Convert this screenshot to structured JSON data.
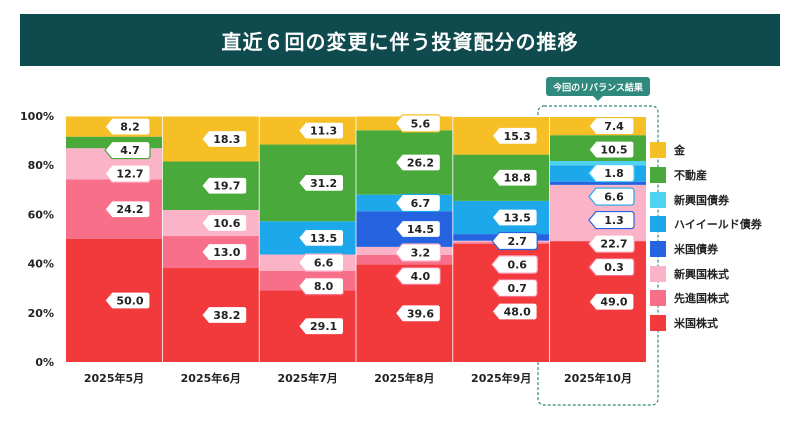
{
  "title": "直近６回の変更に伴う投資配分の推移",
  "callout": "今回のリバランス結果",
  "legend": [
    "金",
    "不動産",
    "新興国債券",
    "ハイイールド債券",
    "米国債券",
    "新興国株式",
    "先進国株式",
    "米国株式"
  ],
  "chart_data": {
    "type": "bar",
    "stacked": true,
    "title": "直近６回の変更に伴う投資配分の推移",
    "categories": [
      "2025年5月",
      "2025年6月",
      "2025年7月",
      "2025年8月",
      "2025年9月",
      "2025年10月"
    ],
    "yticks": [
      "0%",
      "20%",
      "40%",
      "60%",
      "80%",
      "100%"
    ],
    "ylim": [
      0,
      100
    ],
    "highlight_index": 5,
    "series": [
      {
        "name": "米国株式",
        "color": "#f23a3d",
        "values": [
          50.0,
          38.2,
          29.1,
          39.6,
          48.0,
          49.0
        ]
      },
      {
        "name": "先進国株式",
        "color": "#f76f88",
        "values": [
          24.2,
          13.0,
          8.0,
          4.0,
          0.7,
          0.3
        ]
      },
      {
        "name": "新興国株式",
        "color": "#fbb3c7",
        "values": [
          12.7,
          10.6,
          6.6,
          3.2,
          0.6,
          22.7
        ]
      },
      {
        "name": "米国債券",
        "color": "#2563e0",
        "values": [
          0,
          0,
          0,
          14.5,
          2.7,
          1.3
        ]
      },
      {
        "name": "ハイイールド債券",
        "color": "#1ea8ec",
        "values": [
          0,
          0,
          13.5,
          6.7,
          13.5,
          6.6
        ]
      },
      {
        "name": "新興国債券",
        "color": "#4fd3f3",
        "values": [
          0,
          0,
          0,
          0,
          0,
          1.8
        ]
      },
      {
        "name": "不動産",
        "color": "#49a93b",
        "values": [
          4.7,
          19.7,
          31.2,
          26.2,
          18.8,
          10.5
        ]
      },
      {
        "name": "金",
        "color": "#f6bf26",
        "values": [
          8.2,
          18.3,
          11.3,
          5.6,
          15.3,
          7.4
        ]
      }
    ],
    "labels": [
      [
        {
          "s": "金",
          "text": "8.2"
        },
        {
          "s": "不動産",
          "text": "4.7"
        },
        {
          "s": "新興国株式",
          "text": "12.7"
        },
        {
          "s": "先進国株式",
          "text": "24.2"
        },
        {
          "s": "米国株式",
          "text": "50.0"
        }
      ],
      [
        {
          "s": "金",
          "text": "18.3"
        },
        {
          "s": "不動産",
          "text": "19.7"
        },
        {
          "s": "新興国株式",
          "text": "10.6"
        },
        {
          "s": "先進国株式",
          "text": "13.0"
        },
        {
          "s": "米国株式",
          "text": "38.2"
        }
      ],
      [
        {
          "s": "金",
          "text": "11.3"
        },
        {
          "s": "不動産",
          "text": "31.2"
        },
        {
          "s": "ハイイールド債券",
          "text": "13.5"
        },
        {
          "s": "新興国株式",
          "text": "6.6"
        },
        {
          "s": "先進国株式",
          "text": "8.0"
        },
        {
          "s": "米国株式",
          "text": "29.1"
        }
      ],
      [
        {
          "s": "金",
          "text": "5.6"
        },
        {
          "s": "不動産",
          "text": "26.2"
        },
        {
          "s": "ハイイールド債券",
          "text": "6.7"
        },
        {
          "s": "米国債券",
          "text": "14.5"
        },
        {
          "s": "新興国株式",
          "text": "3.2"
        },
        {
          "s": "先進国株式",
          "text": "4.0"
        },
        {
          "s": "米国株式",
          "text": "39.6"
        }
      ],
      [
        {
          "s": "金",
          "text": "15.3"
        },
        {
          "s": "不動産",
          "text": "18.8"
        },
        {
          "s": "ハイイールド債券",
          "text": "13.5"
        },
        {
          "s": "米国債券",
          "text": "2.7"
        },
        {
          "s": "新興国株式",
          "text": "0.6"
        },
        {
          "s": "先進国株式",
          "text": "0.7"
        },
        {
          "s": "米国株式",
          "text": "48.0"
        }
      ],
      [
        {
          "s": "金",
          "text": "7.4"
        },
        {
          "s": "不動産",
          "text": "10.5"
        },
        {
          "s": "新興国債券",
          "text": "1.8"
        },
        {
          "s": "ハイイールド債券",
          "text": "6.6"
        },
        {
          "s": "米国債券",
          "text": "1.3"
        },
        {
          "s": "新興国株式",
          "text": "22.7"
        },
        {
          "s": "先進国株式",
          "text": "0.3"
        },
        {
          "s": "米国株式",
          "text": "49.0"
        }
      ]
    ]
  }
}
